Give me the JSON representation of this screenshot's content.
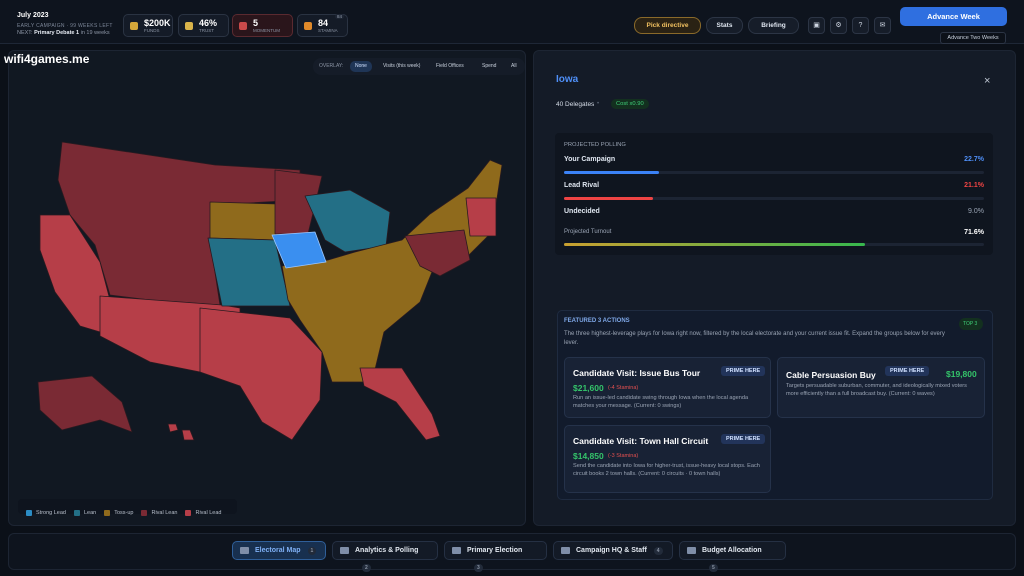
{
  "header": {
    "date": "July 2023",
    "phase": "EARLY CAMPAIGN · 99 WEEKS LEFT",
    "next_prefix": "NEXT:",
    "next_event": "Primary Debate 1",
    "next_suffix": "in 19 weeks",
    "stats": [
      {
        "value": "$200K",
        "label": "FUNDS"
      },
      {
        "value": "46%",
        "label": "TRUST"
      },
      {
        "value": "5",
        "label": "MOMENTUM"
      },
      {
        "value": "84",
        "label": "STAMINA",
        "badge": "84"
      }
    ],
    "buttons": {
      "directive": "Pick directive",
      "stats": "Stats",
      "briefing": "Briefing",
      "advance": "Advance Week",
      "advance_tooltip": "Advance Two Weeks"
    }
  },
  "watermark": "wifi4games.me",
  "map": {
    "overlay_label": "OVERLAY:",
    "overlays": [
      "None",
      "Visits (this week)",
      "Field Offices",
      "Spend",
      "All"
    ],
    "active_overlay": "None",
    "legend": [
      {
        "name": "Strong Lead",
        "color": "#2b8cc4"
      },
      {
        "name": "Lean",
        "color": "#236f86"
      },
      {
        "name": "Toss-up",
        "color": "#8f6a1c"
      },
      {
        "name": "Rival Lean",
        "color": "#7a2a34"
      },
      {
        "name": "Rival Lead",
        "color": "#b63e48"
      }
    ]
  },
  "state_panel": {
    "name": "Iowa",
    "delegates": "40 Delegates",
    "cost": "Cost x0.90",
    "polling": {
      "title": "PROJECTED POLLING",
      "rows": [
        {
          "label": "Your Campaign",
          "value": 22.7,
          "value_label": "22.7%",
          "color": "#3b82f6"
        },
        {
          "label": "Lead Rival",
          "value": 21.1,
          "value_label": "21.1%",
          "color": "#ef4444"
        },
        {
          "label": "Undecided",
          "value": 9.0,
          "value_label": "9.0%"
        }
      ],
      "turnout": {
        "label": "Projected Turnout",
        "value": 71.6,
        "value_label": "71.6%"
      }
    },
    "featured": {
      "title": "FEATURED 3 ACTIONS",
      "badge": "TOP 3",
      "description": "The three highest-leverage plays for Iowa right now, filtered by the local electorate and your current issue fit. Expand the groups below for every lever.",
      "actions": [
        {
          "title": "Candidate Visit: Issue Bus Tour",
          "tag": "PRIME HERE",
          "cost": "$21,600",
          "stamina": "(-4 Stamina)",
          "text": "Run an issue-led candidate swing through Iowa when the local agenda matches your message. (Current: 0 swings)"
        },
        {
          "title": "Cable Persuasion Buy",
          "tag": "PRIME HERE",
          "cost": "$19,800",
          "text": "Targets persuadable suburban, commuter, and ideologically mixed voters more efficiently than a full broadcast buy. (Current: 0 waves)"
        },
        {
          "title": "Candidate Visit: Town Hall Circuit",
          "tag": "PRIME HERE",
          "cost": "$14,850",
          "stamina": "(-3 Stamina)",
          "text": "Send the candidate into Iowa for higher-trust, issue-heavy local stops. Each circuit books 2 town halls. (Current: 0 circuits · 0 town halls)"
        }
      ]
    }
  },
  "tabs": [
    {
      "label": "Electoral Map",
      "key": "1"
    },
    {
      "label": "Analytics & Polling",
      "key": "2"
    },
    {
      "label": "Primary Election",
      "key": "3"
    },
    {
      "label": "Campaign HQ & Staff",
      "key": "4"
    },
    {
      "label": "Budget Allocation",
      "key": "5"
    }
  ],
  "active_tab": "Electoral Map"
}
